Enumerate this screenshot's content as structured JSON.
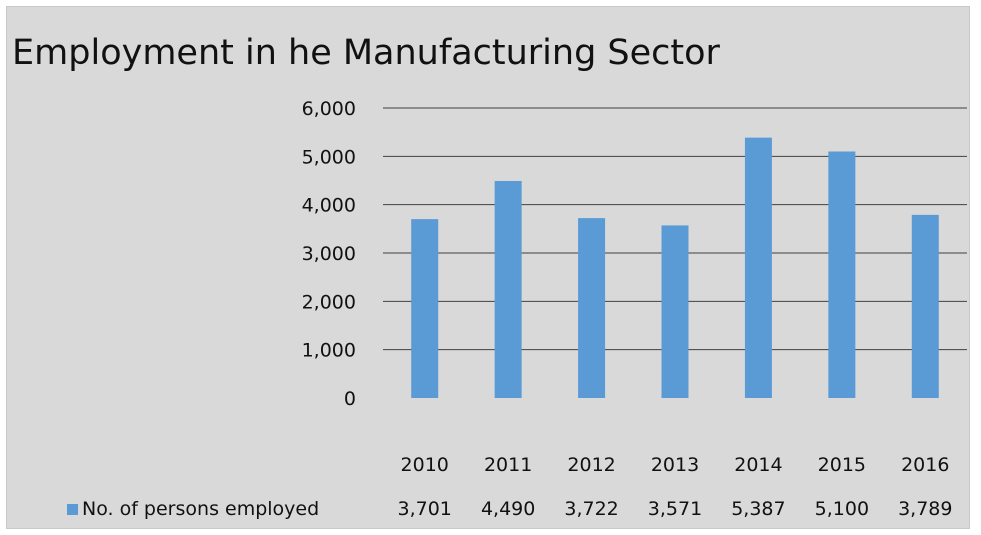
{
  "chart_data": {
    "type": "bar",
    "title": "Employment in he Manufacturing Sector",
    "xlabel": "",
    "ylabel": "",
    "categories": [
      "2010",
      "2011",
      "2012",
      "2013",
      "2014",
      "2015",
      "2016"
    ],
    "series": [
      {
        "name": "No. of persons employed",
        "values": [
          3701,
          4490,
          3722,
          3571,
          5387,
          5100,
          3789
        ],
        "value_labels": [
          "3,701",
          "4,490",
          "3,722",
          "3,571",
          "5,387",
          "5,100",
          "3,789"
        ],
        "color": "#5b9bd5"
      }
    ],
    "ylim": [
      0,
      6000
    ],
    "yticks": [
      0,
      1000,
      2000,
      3000,
      4000,
      5000,
      6000
    ],
    "ytick_labels": [
      "0",
      "1,000",
      "2,000",
      "3,000",
      "4,000",
      "5,000",
      "6,000"
    ],
    "grid": true,
    "legend_placement": "bottom (data table)"
  },
  "colors": {
    "background": "#d9d9d9",
    "gridline": "#404040",
    "bar": "#5b9bd5",
    "text": "#111111"
  }
}
